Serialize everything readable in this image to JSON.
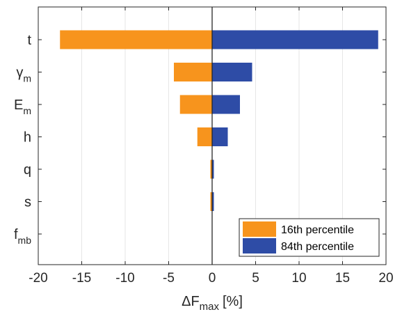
{
  "chart_data": {
    "type": "bar",
    "orientation": "horizontal",
    "title": "",
    "xlabel": "ΔF",
    "xlabel_subscript": "max",
    "xlabel_unit": "[%]",
    "ylabel": "",
    "xlim": [
      -20,
      20
    ],
    "xticks": [
      -20,
      -15,
      -10,
      -5,
      0,
      5,
      10,
      15,
      20
    ],
    "grid": "vertical",
    "legend_position": "bottom-right",
    "categories": [
      {
        "main": "t",
        "sub": ""
      },
      {
        "main": "γ",
        "sub": "m"
      },
      {
        "main": "E",
        "sub": "m"
      },
      {
        "main": "h",
        "sub": ""
      },
      {
        "main": "q",
        "sub": ""
      },
      {
        "main": "s",
        "sub": ""
      },
      {
        "main": "f",
        "sub": "mb"
      }
    ],
    "series": [
      {
        "name": "16th percentile",
        "color": "#F7941D",
        "values": [
          -17.5,
          -4.4,
          -3.7,
          -1.7,
          -0.2,
          -0.2,
          0
        ]
      },
      {
        "name": "84th percentile",
        "color": "#2E4CA6",
        "values": [
          19.1,
          4.6,
          3.2,
          1.8,
          0.2,
          0.2,
          0
        ]
      }
    ]
  }
}
